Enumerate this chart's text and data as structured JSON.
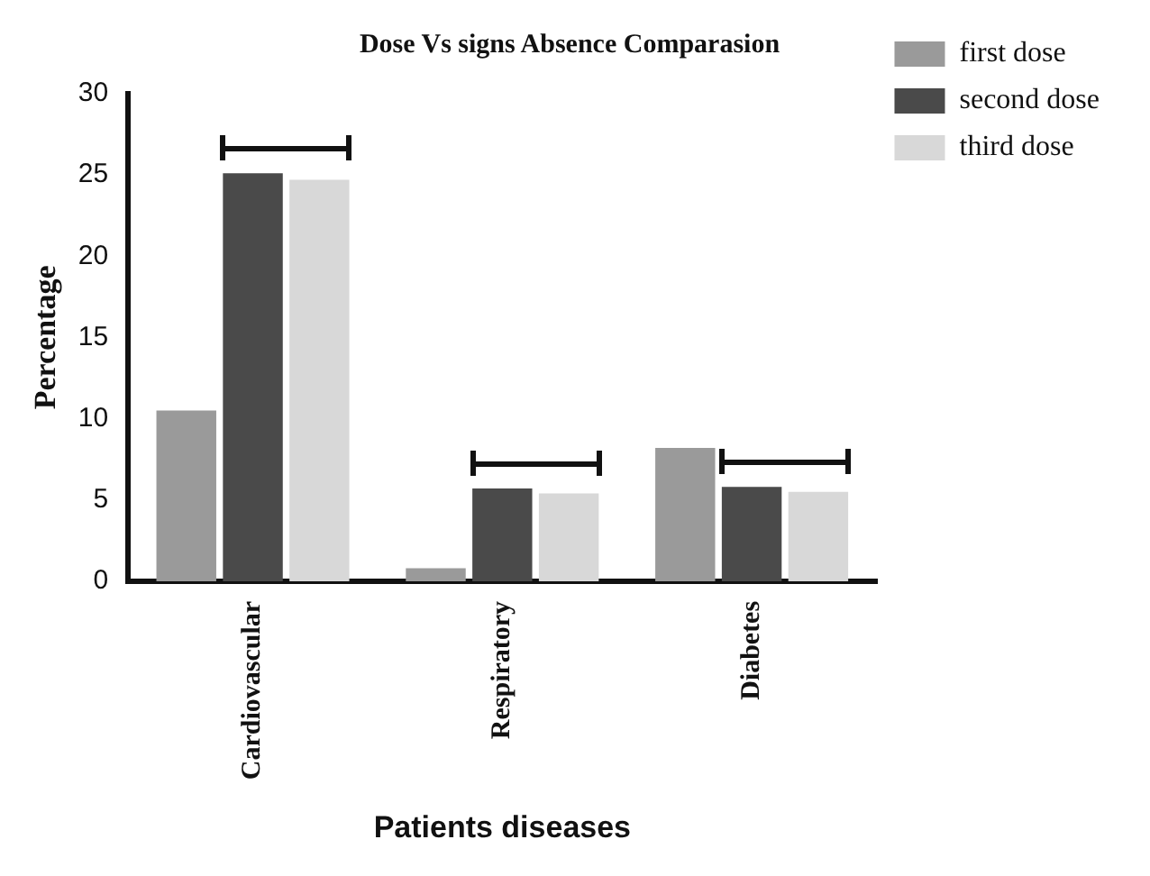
{
  "chart_data": {
    "type": "bar",
    "title": "Dose Vs signs Absence Comparasion",
    "xlabel": "Patients diseases",
    "ylabel": "Percentage",
    "categories": [
      "Cardiovascular",
      "Respiratory",
      "Diabetes"
    ],
    "series": [
      {
        "name": "first dose",
        "color": "#9a9a9a",
        "values": [
          10.5,
          0.8,
          8.2
        ]
      },
      {
        "name": "second dose",
        "color": "#4a4a4a",
        "values": [
          25.1,
          5.7,
          5.8
        ]
      },
      {
        "name": "third dose",
        "color": "#d8d8d8",
        "values": [
          24.7,
          5.4,
          5.5
        ]
      }
    ],
    "ylim": [
      0,
      30
    ],
    "yticks": [
      0,
      5,
      10,
      15,
      20,
      25,
      30
    ],
    "grid": false,
    "legend": "top right"
  }
}
